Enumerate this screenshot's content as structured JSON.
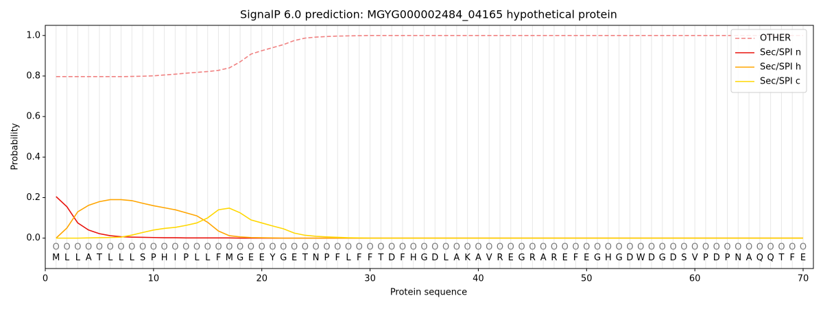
{
  "chart_data": {
    "type": "line",
    "title": "SignalP 6.0 prediction: MGYG000002484_04165 hypothetical protein",
    "x_label": "Protein sequence",
    "y_label": "Probability",
    "x": [
      1,
      2,
      3,
      4,
      5,
      6,
      7,
      8,
      9,
      10,
      11,
      12,
      13,
      14,
      15,
      16,
      17,
      18,
      19,
      20,
      21,
      22,
      23,
      24,
      25,
      26,
      27,
      28,
      29,
      30,
      31,
      32,
      33,
      34,
      35,
      36,
      37,
      38,
      39,
      40,
      41,
      42,
      43,
      44,
      45,
      46,
      47,
      48,
      49,
      50,
      51,
      52,
      53,
      54,
      55,
      56,
      57,
      58,
      59,
      60,
      61,
      62,
      63,
      64,
      65,
      66,
      67,
      68,
      69,
      70
    ],
    "sequence": [
      "M",
      "L",
      "L",
      "A",
      "T",
      "L",
      "L",
      "L",
      "S",
      "P",
      "H",
      "I",
      "P",
      "L",
      "L",
      "F",
      "M",
      "G",
      "E",
      "E",
      "Y",
      "G",
      "E",
      "T",
      "N",
      "P",
      "F",
      "L",
      "F",
      "F",
      "T",
      "D",
      "F",
      "H",
      "G",
      "D",
      "L",
      "A",
      "K",
      "A",
      "V",
      "R",
      "E",
      "G",
      "R",
      "A",
      "R",
      "E",
      "F",
      "E",
      "G",
      "H",
      "G",
      "D",
      "W",
      "D",
      "G",
      "D",
      "S",
      "V",
      "P",
      "D",
      "P",
      "N",
      "A",
      "Q",
      "Q",
      "T",
      "F",
      "E"
    ],
    "predicted_labels": [
      "O",
      "O",
      "O",
      "O",
      "O",
      "O",
      "O",
      "O",
      "O",
      "O",
      "O",
      "O",
      "O",
      "O",
      "O",
      "O",
      "O",
      "O",
      "O",
      "O",
      "O",
      "O",
      "O",
      "O",
      "O",
      "O",
      "O",
      "O",
      "O",
      "O",
      "O",
      "O",
      "O",
      "O",
      "O",
      "O",
      "O",
      "O",
      "O",
      "O",
      "O",
      "O",
      "O",
      "O",
      "O",
      "O",
      "O",
      "O",
      "O",
      "O",
      "O",
      "O",
      "O",
      "O",
      "O",
      "O",
      "O",
      "O",
      "O",
      "O",
      "O",
      "O",
      "O",
      "O",
      "O",
      "O",
      "O",
      "O",
      "O",
      "O"
    ],
    "series": [
      {
        "name": "OTHER",
        "color": "#f08080",
        "dashed": true,
        "values": [
          0.797,
          0.797,
          0.797,
          0.797,
          0.797,
          0.797,
          0.797,
          0.798,
          0.799,
          0.801,
          0.805,
          0.809,
          0.814,
          0.818,
          0.822,
          0.828,
          0.84,
          0.87,
          0.908,
          0.925,
          0.94,
          0.955,
          0.975,
          0.987,
          0.992,
          0.995,
          0.997,
          0.998,
          0.999,
          1,
          1,
          1,
          1,
          1,
          1,
          1,
          1,
          1,
          1,
          1,
          1,
          1,
          1,
          1,
          1,
          1,
          1,
          1,
          1,
          1,
          1,
          1,
          1,
          1,
          1,
          1,
          1,
          1,
          1,
          1,
          1,
          1,
          1,
          1,
          1,
          1,
          1,
          1,
          1,
          1
        ]
      },
      {
        "name": "Sec/SPI n",
        "color": "#e8120c",
        "dashed": false,
        "values": [
          0.205,
          0.155,
          0.075,
          0.04,
          0.022,
          0.012,
          0.007,
          0.005,
          0.004,
          0.003,
          0.002,
          0.002,
          0.001,
          0.001,
          0.001,
          0.001,
          0.001,
          0,
          0,
          0,
          0,
          0,
          0,
          0,
          0,
          0,
          0,
          0,
          0,
          0,
          0,
          0,
          0,
          0,
          0,
          0,
          0,
          0,
          0,
          0,
          0,
          0,
          0,
          0,
          0,
          0,
          0,
          0,
          0,
          0,
          0,
          0,
          0,
          0,
          0,
          0,
          0,
          0,
          0,
          0,
          0,
          0,
          0,
          0,
          0,
          0,
          0,
          0,
          0,
          0
        ]
      },
      {
        "name": "Sec/SPI h",
        "color": "#ffa500",
        "dashed": false,
        "values": [
          0,
          0.05,
          0.13,
          0.162,
          0.18,
          0.19,
          0.19,
          0.185,
          0.172,
          0.16,
          0.15,
          0.14,
          0.125,
          0.11,
          0.078,
          0.035,
          0.012,
          0.006,
          0.003,
          0.002,
          0.001,
          0,
          0,
          0,
          0,
          0,
          0,
          0,
          0,
          0,
          0,
          0,
          0,
          0,
          0,
          0,
          0,
          0,
          0,
          0,
          0,
          0,
          0,
          0,
          0,
          0,
          0,
          0,
          0,
          0,
          0,
          0,
          0,
          0,
          0,
          0,
          0,
          0,
          0,
          0,
          0,
          0,
          0,
          0,
          0,
          0,
          0,
          0,
          0,
          0
        ]
      },
      {
        "name": "Sec/SPI c",
        "color": "#ffd700",
        "dashed": false,
        "values": [
          0,
          0,
          0,
          0.001,
          0.002,
          0.003,
          0.005,
          0.015,
          0.028,
          0.04,
          0.048,
          0.053,
          0.063,
          0.075,
          0.1,
          0.14,
          0.148,
          0.125,
          0.09,
          0.075,
          0.06,
          0.046,
          0.025,
          0.014,
          0.009,
          0.006,
          0.004,
          0.002,
          0.001,
          0,
          0,
          0,
          0,
          0,
          0,
          0,
          0,
          0,
          0,
          0,
          0,
          0,
          0,
          0,
          0,
          0,
          0,
          0,
          0,
          0,
          0,
          0,
          0,
          0,
          0,
          0,
          0,
          0,
          0,
          0,
          0,
          0,
          0,
          0,
          0,
          0,
          0,
          0,
          0,
          0
        ]
      }
    ],
    "xlim": [
      0,
      70.95
    ],
    "ylim": [
      -0.15,
      1.05
    ],
    "xticks": [
      0,
      10,
      20,
      30,
      40,
      50,
      60,
      70
    ],
    "yticks": [
      {
        "value": 0,
        "label": "0.0"
      },
      {
        "value": 0.2,
        "label": "0.2"
      },
      {
        "value": 0.4,
        "label": "0.4"
      },
      {
        "value": 0.6,
        "label": "0.6"
      },
      {
        "value": 0.8,
        "label": "0.8"
      },
      {
        "value": 1,
        "label": "1.0"
      }
    ],
    "grid": true,
    "legend": "upper right"
  }
}
